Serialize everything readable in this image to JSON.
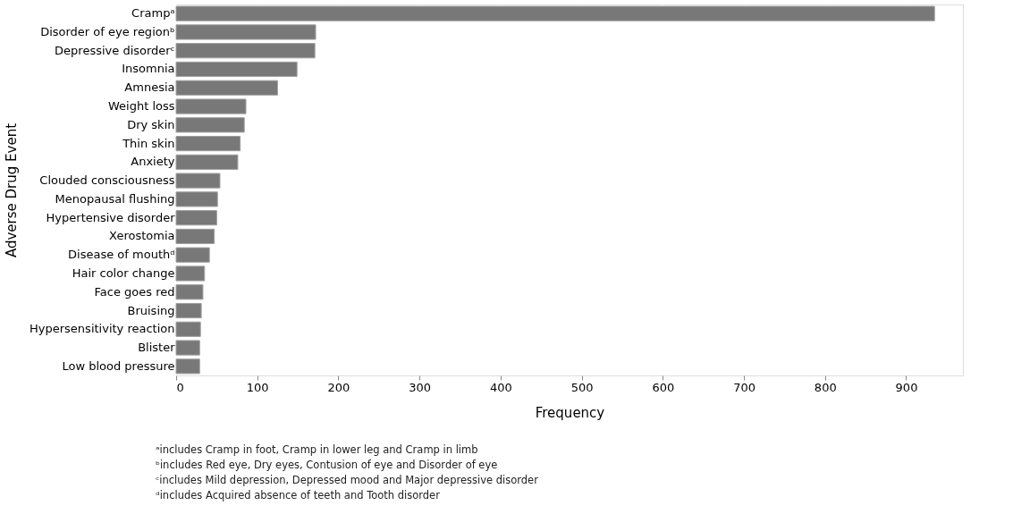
{
  "chart_data": {
    "type": "bar",
    "orientation": "horizontal",
    "xlabel": "Frequency",
    "ylabel": "Adverse Drug Event",
    "categories": [
      "Crampᵃ",
      "Disorder of eye regionᵇ",
      "Depressive disorderᶜ",
      "Insomnia",
      "Amnesia",
      "Weight loss",
      "Dry skin",
      "Thin skin",
      "Anxiety",
      "Clouded consciousness",
      "Menopausal flushing",
      "Hypertensive disorder",
      "Xerostomia",
      "Disease of mouthᵈ",
      "Hair color change",
      "Face goes red",
      "Bruising",
      "Hypersensitivity reaction",
      "Blister",
      "Low blood pressure"
    ],
    "values": [
      935,
      172,
      171,
      149,
      125,
      86,
      84,
      79,
      76,
      54,
      51,
      50,
      47,
      41,
      35,
      33,
      31,
      30,
      29,
      29
    ],
    "color": "#787878",
    "xlim": [
      0,
      970
    ],
    "xticks": [
      0,
      100,
      200,
      300,
      400,
      500,
      600,
      700,
      800,
      900
    ],
    "grid": "x",
    "annotations": [
      "ᵃincludes Cramp in foot, Cramp in lower leg and Cramp in limb",
      "ᵇincludes Red eye, Dry eyes, Contusion of eye and Disorder of eye",
      "ᶜincludes Mild depression, Depressed mood and Major depressive disorder",
      "ᵈincludes Acquired absence of teeth and Tooth disorder"
    ]
  }
}
